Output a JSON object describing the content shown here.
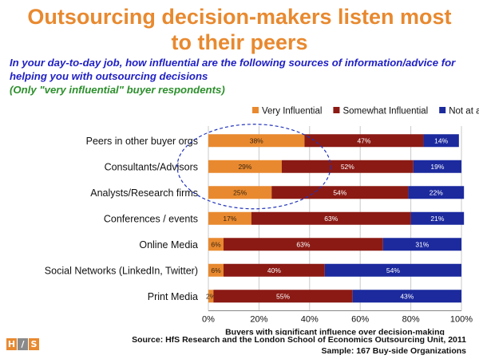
{
  "title_line1": "Outsourcing decision-makers listen most",
  "title_line2": "to their peers",
  "question_line1": "In your day-to-day job, how influential are the following sources of information/advice for",
  "question_line2": "helping you with outsourcing decisions",
  "question_note": "(Only \"very influential\" buyer respondents)",
  "source_line1": "Source:  HfS Research and the London School of Economics Outsourcing Unit, 2011",
  "source_line2": "Sample: 167 Buy-side Organizations",
  "logo": {
    "letters": [
      "H",
      "/",
      "S"
    ],
    "colors": [
      "#e8892f",
      "#8a8a8a",
      "#e8892f"
    ]
  },
  "chart_data": {
    "type": "bar",
    "orientation": "horizontal",
    "stacked": true,
    "categories": [
      "Peers in other buyer orgs",
      "Consultants/Advisors",
      "Analysts/Research firms",
      "Conferences / events",
      "Online Media",
      "Social Networks (LinkedIn, Twitter)",
      "Print Media"
    ],
    "series": [
      {
        "name": "Very Influential",
        "color": "#e8892f",
        "values": [
          38,
          29,
          25,
          17,
          6,
          6,
          2
        ]
      },
      {
        "name": "Somewhat Influential",
        "color": "#8b1a14",
        "values": [
          47,
          52,
          54,
          63,
          63,
          40,
          55
        ]
      },
      {
        "name": "Not at all Influential",
        "color": "#1c2a9e",
        "values": [
          14,
          19,
          22,
          21,
          31,
          54,
          43
        ]
      }
    ],
    "x_ticks": [
      "0%",
      "20%",
      "40%",
      "60%",
      "80%",
      "100%"
    ],
    "xlim": [
      0,
      100
    ],
    "xlabel": "Buyers with significant influence over decision-making",
    "grid": true,
    "legend": "top-right",
    "annotation": "dashed ellipse around top three Very Influential bars"
  }
}
